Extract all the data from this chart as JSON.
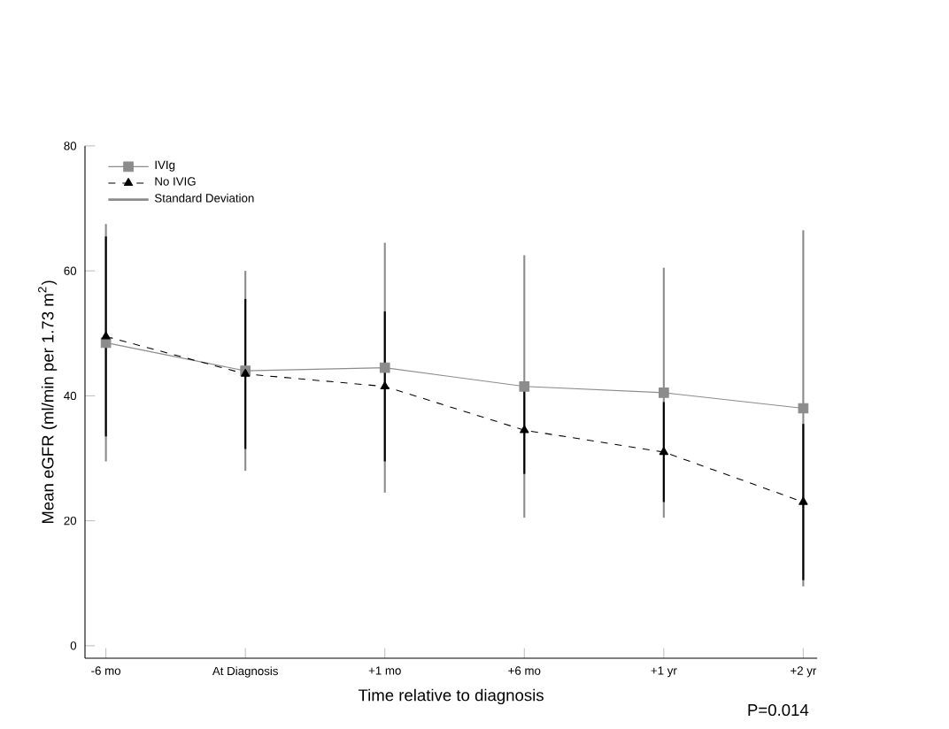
{
  "chart_data": {
    "type": "line",
    "xlabel": "Time relative to diagnosis",
    "ylabel": "Mean eGFR (ml/min per 1.73 m$^{2}$)",
    "categories": [
      "-6 mo",
      "At Diagnosis",
      "+1 mo",
      "+6 mo",
      "+1 yr",
      "+2 yr"
    ],
    "series": [
      {
        "name": "IVIg",
        "color": "#8c8c8c",
        "marker": "square",
        "line_style": "solid",
        "values": [
          48.5,
          44,
          44.5,
          41.5,
          40.5,
          38
        ],
        "errors": [
          19,
          16,
          20,
          21,
          20,
          28.5
        ]
      },
      {
        "name": "No IVIG",
        "color": "#000000",
        "marker": "triangle",
        "line_style": "dashed",
        "values": [
          49.5,
          43.5,
          41.5,
          34.5,
          31,
          23
        ],
        "errors": [
          16,
          12,
          12,
          7,
          8,
          12.5
        ]
      }
    ],
    "ylim": [
      -2,
      80
    ],
    "yticks": [
      0,
      20,
      40,
      60,
      80
    ],
    "legend": "top left",
    "grid": false,
    "annotations": [
      "Standard Deviation",
      "P=0.014"
    ]
  }
}
